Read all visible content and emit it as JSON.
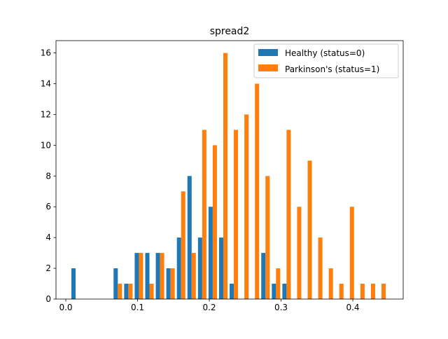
{
  "chart_data": {
    "type": "bar",
    "title": "spread2",
    "xlabel": "",
    "ylabel": "",
    "xlim": [
      -0.0137,
      0.4702
    ],
    "ylim": [
      0,
      16.8
    ],
    "xticks": [
      0.0,
      0.1,
      0.2,
      0.3,
      0.4
    ],
    "xtick_labels": [
      "0.0",
      "0.1",
      "0.2",
      "0.3",
      "0.4"
    ],
    "yticks": [
      0,
      2,
      4,
      6,
      8,
      10,
      12,
      14,
      16
    ],
    "ytick_labels": [
      "0",
      "2",
      "4",
      "6",
      "8",
      "10",
      "12",
      "14",
      "16"
    ],
    "legend_position": "top-right",
    "bin_start": 0.0063,
    "bin_width": 0.0147,
    "series": [
      {
        "name": "Healthy (status=0)",
        "color": "#1f77b4",
        "values": [
          2,
          0,
          0,
          0,
          2,
          1,
          3,
          3,
          3,
          2,
          4,
          8,
          4,
          6,
          4,
          1,
          0,
          0,
          3,
          1,
          1,
          0,
          0,
          0,
          0,
          0,
          0,
          0,
          0,
          0,
          0
        ]
      },
      {
        "name": "Parkinson's (status=1)",
        "color": "#ff7f0e",
        "values": [
          0,
          0,
          0,
          0,
          1,
          1,
          3,
          1,
          3,
          2,
          7,
          3,
          11,
          10,
          16,
          11,
          12,
          14,
          8,
          2,
          11,
          6,
          9,
          4,
          2,
          1,
          6,
          1,
          1,
          1,
          0
        ]
      }
    ]
  }
}
